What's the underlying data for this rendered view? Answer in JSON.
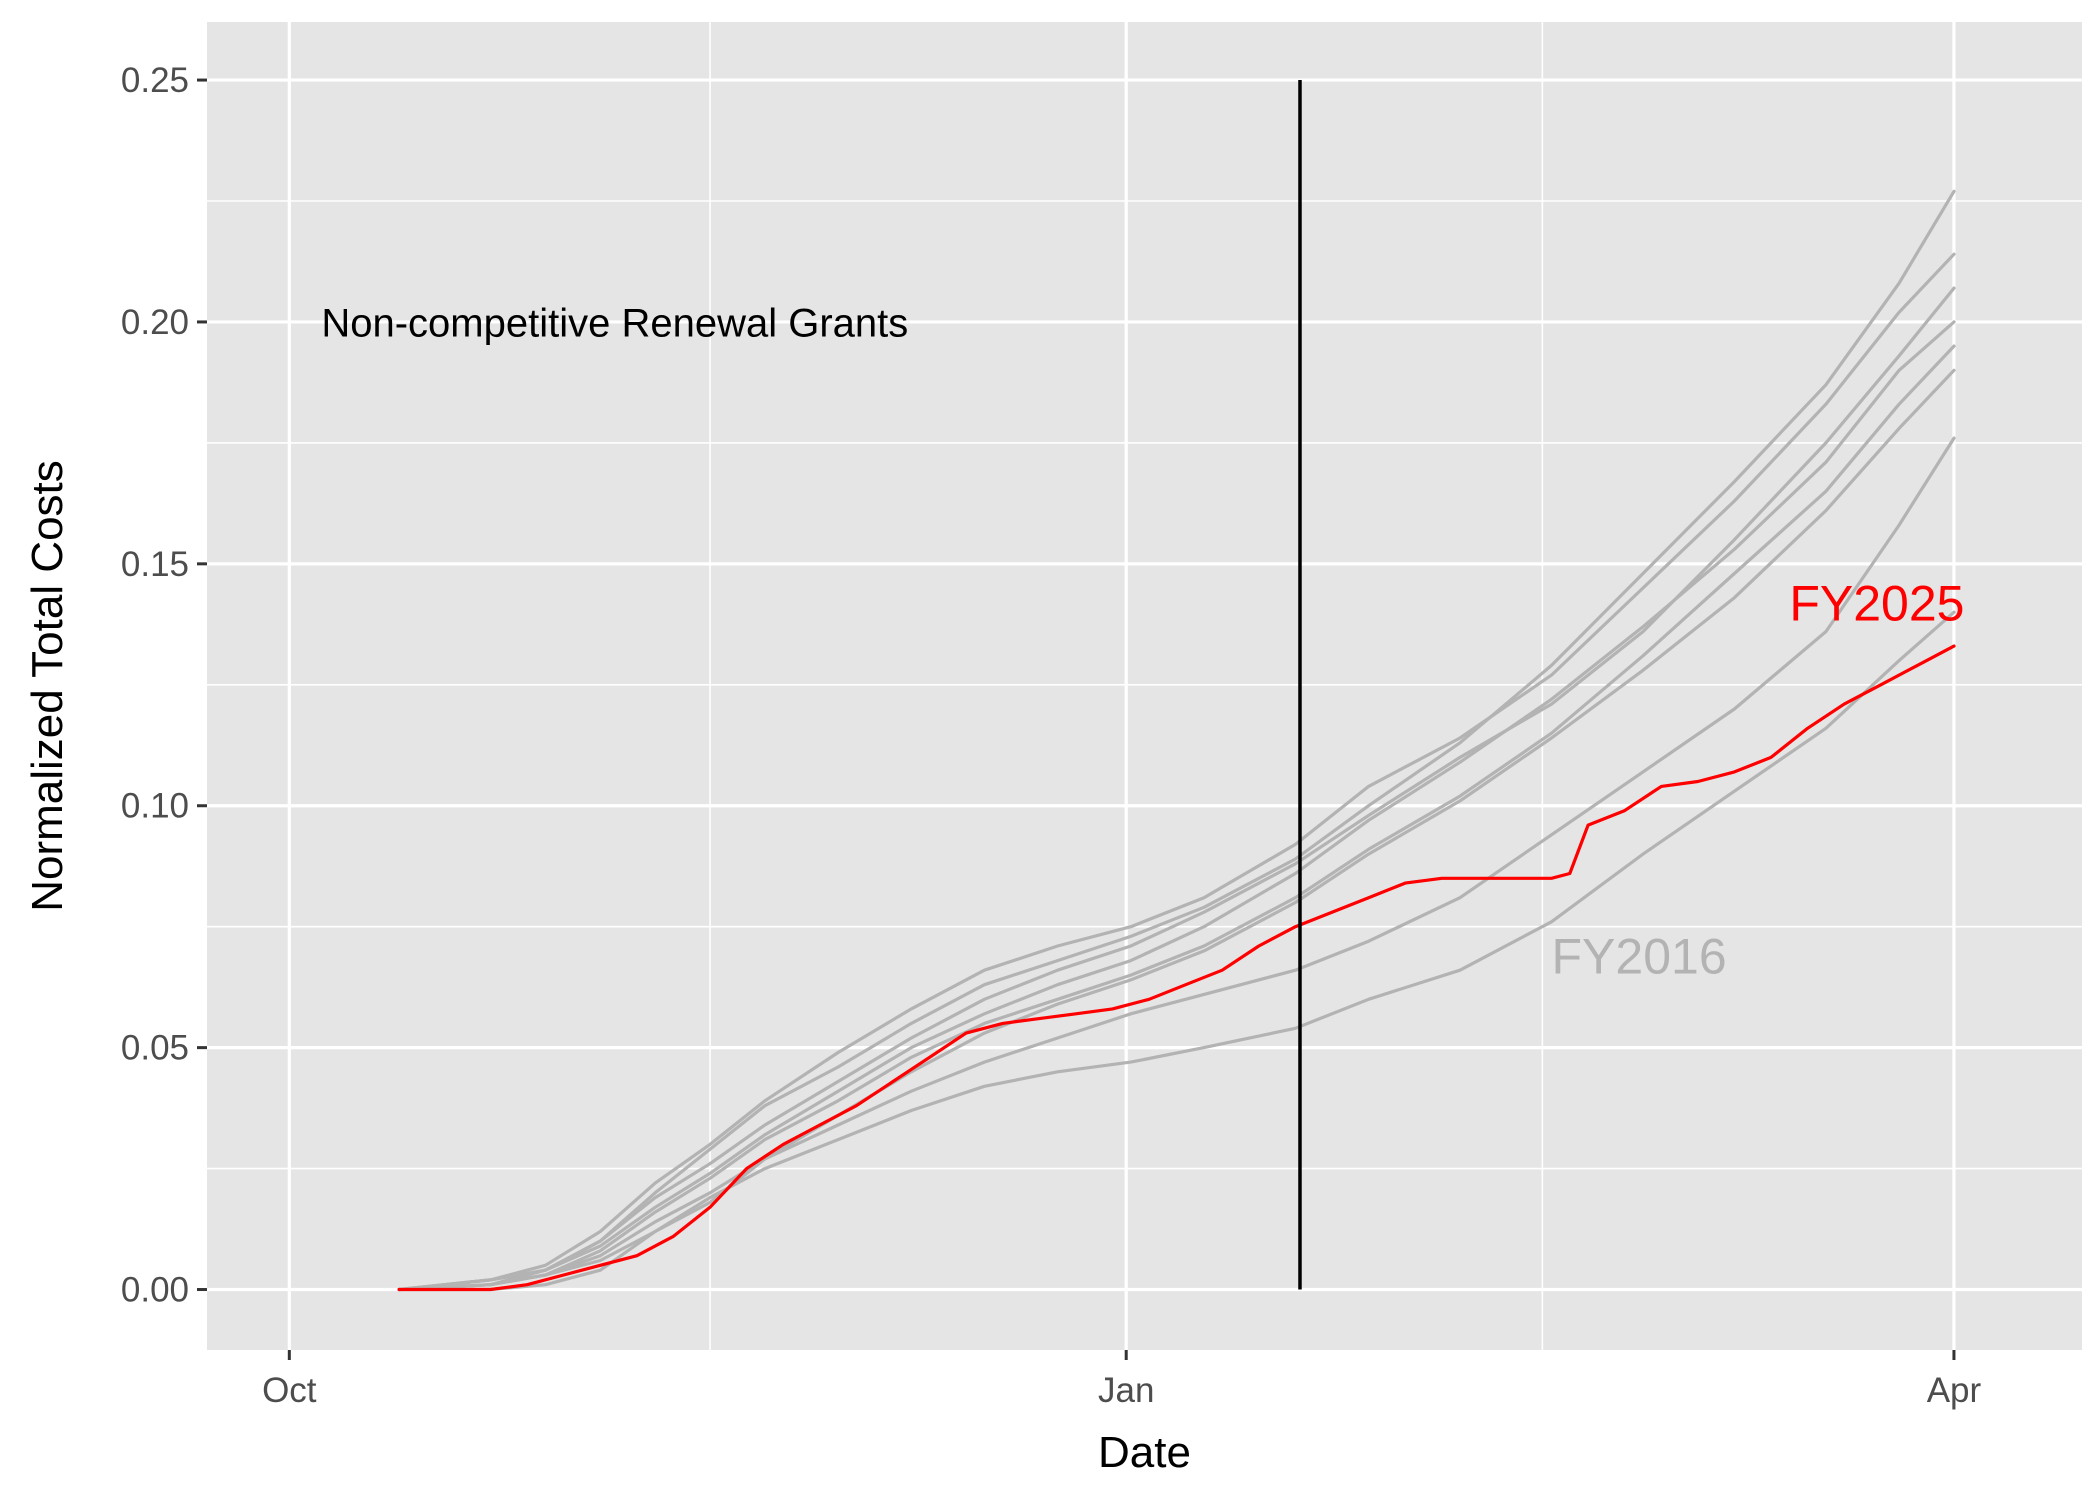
{
  "chart_data": {
    "type": "line",
    "title": "",
    "xlabel": "Date",
    "ylabel": "Normalized Total Costs",
    "x_unit": "fiscal-year day (0 = Oct 1, ~91.5 = Jan 1, ~182 = Apr 1)",
    "xlim": [
      -9,
      196
    ],
    "ylim": [
      -0.0125,
      0.262
    ],
    "x_ticks": [
      {
        "label": "Oct",
        "x": 0
      },
      {
        "label": "Jan",
        "x": 91.5
      },
      {
        "label": "Apr",
        "x": 182
      }
    ],
    "x_minor_ticks": [
      46,
      137
    ],
    "y_ticks": [
      {
        "label": "0.00",
        "y": 0.0
      },
      {
        "label": "0.05",
        "y": 0.05
      },
      {
        "label": "0.10",
        "y": 0.1
      },
      {
        "label": "0.15",
        "y": 0.15
      },
      {
        "label": "0.20",
        "y": 0.2
      },
      {
        "label": "0.25",
        "y": 0.25
      }
    ],
    "y_minor_ticks": [
      0.025,
      0.075,
      0.125,
      0.175,
      0.225
    ],
    "grid": true,
    "background": "#e5e5e5",
    "gridline_color": "#ffffff",
    "reference_line": {
      "x": 110.5,
      "y_from": 0.0,
      "y_to": 0.25,
      "color": "#000000"
    },
    "series": [
      {
        "color": "#b3b3b3",
        "points": [
          [
            12,
            0
          ],
          [
            22,
            0.001
          ],
          [
            28,
            0.003
          ],
          [
            34,
            0.006
          ],
          [
            40,
            0.012
          ],
          [
            46,
            0.018
          ],
          [
            52,
            0.027
          ],
          [
            60,
            0.036
          ],
          [
            68,
            0.045
          ],
          [
            76,
            0.053
          ],
          [
            84,
            0.059
          ],
          [
            92,
            0.064
          ],
          [
            100,
            0.07
          ],
          [
            110,
            0.08
          ],
          [
            118,
            0.09
          ],
          [
            128,
            0.101
          ],
          [
            138,
            0.114
          ],
          [
            148,
            0.128
          ],
          [
            158,
            0.143
          ],
          [
            168,
            0.161
          ],
          [
            176,
            0.178
          ],
          [
            182,
            0.19
          ]
        ]
      },
      {
        "color": "#b3b3b3",
        "points": [
          [
            12,
            0
          ],
          [
            22,
            0.002
          ],
          [
            28,
            0.004
          ],
          [
            34,
            0.009
          ],
          [
            40,
            0.017
          ],
          [
            46,
            0.024
          ],
          [
            52,
            0.032
          ],
          [
            60,
            0.041
          ],
          [
            68,
            0.05
          ],
          [
            76,
            0.057
          ],
          [
            84,
            0.063
          ],
          [
            92,
            0.068
          ],
          [
            100,
            0.075
          ],
          [
            110,
            0.086
          ],
          [
            118,
            0.097
          ],
          [
            128,
            0.109
          ],
          [
            138,
            0.122
          ],
          [
            148,
            0.137
          ],
          [
            158,
            0.153
          ],
          [
            168,
            0.171
          ],
          [
            176,
            0.19
          ],
          [
            182,
            0.2
          ]
        ]
      },
      {
        "color": "#b3b3b3",
        "points": [
          [
            12,
            0
          ],
          [
            22,
            0.002
          ],
          [
            28,
            0.005
          ],
          [
            34,
            0.012
          ],
          [
            40,
            0.022
          ],
          [
            46,
            0.03
          ],
          [
            52,
            0.039
          ],
          [
            60,
            0.049
          ],
          [
            68,
            0.058
          ],
          [
            76,
            0.066
          ],
          [
            84,
            0.071
          ],
          [
            92,
            0.075
          ],
          [
            100,
            0.081
          ],
          [
            110,
            0.092
          ],
          [
            118,
            0.104
          ],
          [
            128,
            0.114
          ],
          [
            138,
            0.127
          ],
          [
            148,
            0.145
          ],
          [
            158,
            0.163
          ],
          [
            168,
            0.183
          ],
          [
            176,
            0.202
          ],
          [
            182,
            0.214
          ]
        ]
      },
      {
        "color": "#b3b3b3",
        "points": [
          [
            12,
            0
          ],
          [
            22,
            0.001
          ],
          [
            28,
            0.004
          ],
          [
            34,
            0.01
          ],
          [
            40,
            0.02
          ],
          [
            46,
            0.029
          ],
          [
            52,
            0.038
          ],
          [
            60,
            0.046
          ],
          [
            68,
            0.055
          ],
          [
            76,
            0.063
          ],
          [
            84,
            0.068
          ],
          [
            92,
            0.073
          ],
          [
            100,
            0.079
          ],
          [
            110,
            0.089
          ],
          [
            118,
            0.1
          ],
          [
            128,
            0.113
          ],
          [
            138,
            0.129
          ],
          [
            148,
            0.148
          ],
          [
            158,
            0.167
          ],
          [
            168,
            0.187
          ],
          [
            176,
            0.208
          ],
          [
            182,
            0.227
          ]
        ]
      },
      {
        "color": "#b3b3b3",
        "points": [
          [
            12,
            0
          ],
          [
            22,
            0.002
          ],
          [
            28,
            0.004
          ],
          [
            34,
            0.01
          ],
          [
            40,
            0.019
          ],
          [
            46,
            0.026
          ],
          [
            52,
            0.034
          ],
          [
            60,
            0.043
          ],
          [
            68,
            0.052
          ],
          [
            76,
            0.06
          ],
          [
            84,
            0.066
          ],
          [
            92,
            0.071
          ],
          [
            100,
            0.078
          ],
          [
            110,
            0.088
          ],
          [
            118,
            0.098
          ],
          [
            128,
            0.11
          ],
          [
            138,
            0.121
          ],
          [
            148,
            0.136
          ],
          [
            158,
            0.155
          ],
          [
            168,
            0.175
          ],
          [
            176,
            0.193
          ],
          [
            182,
            0.207
          ]
        ]
      },
      {
        "color": "#b3b3b3",
        "points": [
          [
            12,
            0
          ],
          [
            22,
            0.001
          ],
          [
            28,
            0.003
          ],
          [
            34,
            0.008
          ],
          [
            40,
            0.016
          ],
          [
            46,
            0.023
          ],
          [
            52,
            0.031
          ],
          [
            60,
            0.039
          ],
          [
            68,
            0.048
          ],
          [
            76,
            0.055
          ],
          [
            84,
            0.06
          ],
          [
            92,
            0.065
          ],
          [
            100,
            0.071
          ],
          [
            110,
            0.081
          ],
          [
            118,
            0.091
          ],
          [
            128,
            0.102
          ],
          [
            138,
            0.115
          ],
          [
            148,
            0.131
          ],
          [
            158,
            0.148
          ],
          [
            168,
            0.165
          ],
          [
            176,
            0.183
          ],
          [
            182,
            0.195
          ]
        ]
      },
      {
        "color": "#b3b3b3",
        "points": [
          [
            12,
            0
          ],
          [
            22,
            0.001
          ],
          [
            28,
            0.003
          ],
          [
            34,
            0.007
          ],
          [
            40,
            0.014
          ],
          [
            46,
            0.02
          ],
          [
            52,
            0.027
          ],
          [
            60,
            0.034
          ],
          [
            68,
            0.041
          ],
          [
            76,
            0.047
          ],
          [
            84,
            0.052
          ],
          [
            92,
            0.057
          ],
          [
            100,
            0.061
          ],
          [
            110,
            0.066
          ],
          [
            118,
            0.072
          ],
          [
            128,
            0.081
          ],
          [
            138,
            0.094
          ],
          [
            148,
            0.107
          ],
          [
            158,
            0.12
          ],
          [
            168,
            0.136
          ],
          [
            176,
            0.158
          ],
          [
            182,
            0.176
          ]
        ]
      },
      {
        "color": "#b3b3b3",
        "points": [
          [
            12,
            0
          ],
          [
            22,
            0
          ],
          [
            28,
            0.001
          ],
          [
            34,
            0.004
          ],
          [
            40,
            0.012
          ],
          [
            46,
            0.019
          ],
          [
            52,
            0.025
          ],
          [
            60,
            0.031
          ],
          [
            68,
            0.037
          ],
          [
            76,
            0.042
          ],
          [
            84,
            0.045
          ],
          [
            92,
            0.047
          ],
          [
            100,
            0.05
          ],
          [
            110,
            0.054
          ],
          [
            118,
            0.06
          ],
          [
            128,
            0.066
          ],
          [
            138,
            0.076
          ],
          [
            148,
            0.09
          ],
          [
            158,
            0.103
          ],
          [
            168,
            0.116
          ],
          [
            176,
            0.13
          ],
          [
            182,
            0.14
          ]
        ]
      },
      {
        "color": "#ff0000",
        "points": [
          [
            12,
            0
          ],
          [
            22,
            0
          ],
          [
            26,
            0.001
          ],
          [
            30,
            0.003
          ],
          [
            34,
            0.005
          ],
          [
            38,
            0.007
          ],
          [
            42,
            0.011
          ],
          [
            46,
            0.017
          ],
          [
            50,
            0.025
          ],
          [
            54,
            0.03
          ],
          [
            58,
            0.034
          ],
          [
            62,
            0.038
          ],
          [
            66,
            0.043
          ],
          [
            70,
            0.048
          ],
          [
            74,
            0.053
          ],
          [
            78,
            0.055
          ],
          [
            82,
            0.056
          ],
          [
            86,
            0.057
          ],
          [
            90,
            0.058
          ],
          [
            94,
            0.06
          ],
          [
            98,
            0.063
          ],
          [
            102,
            0.066
          ],
          [
            106,
            0.071
          ],
          [
            110,
            0.075
          ],
          [
            114,
            0.078
          ],
          [
            118,
            0.081
          ],
          [
            122,
            0.084
          ],
          [
            126,
            0.085
          ],
          [
            130,
            0.085
          ],
          [
            134,
            0.085
          ],
          [
            138,
            0.085
          ],
          [
            140,
            0.086
          ],
          [
            142,
            0.096
          ],
          [
            146,
            0.099
          ],
          [
            150,
            0.104
          ],
          [
            154,
            0.105
          ],
          [
            158,
            0.107
          ],
          [
            162,
            0.11
          ],
          [
            166,
            0.116
          ],
          [
            170,
            0.121
          ],
          [
            174,
            0.125
          ],
          [
            178,
            0.129
          ],
          [
            182,
            0.133
          ]
        ]
      }
    ],
    "annotations": [
      {
        "text": "Non-competitive Renewal Grants",
        "x": 3.5,
        "y": 0.2,
        "color": "#000000",
        "size": 40,
        "anchor": "start"
      },
      {
        "text": "FY2025",
        "x": 164,
        "y": 0.142,
        "color": "#ff0000",
        "size": 50,
        "anchor": "start"
      },
      {
        "text": "FY2016",
        "x": 138,
        "y": 0.069,
        "color": "#b3b3b3",
        "size": 50,
        "anchor": "start"
      }
    ]
  }
}
